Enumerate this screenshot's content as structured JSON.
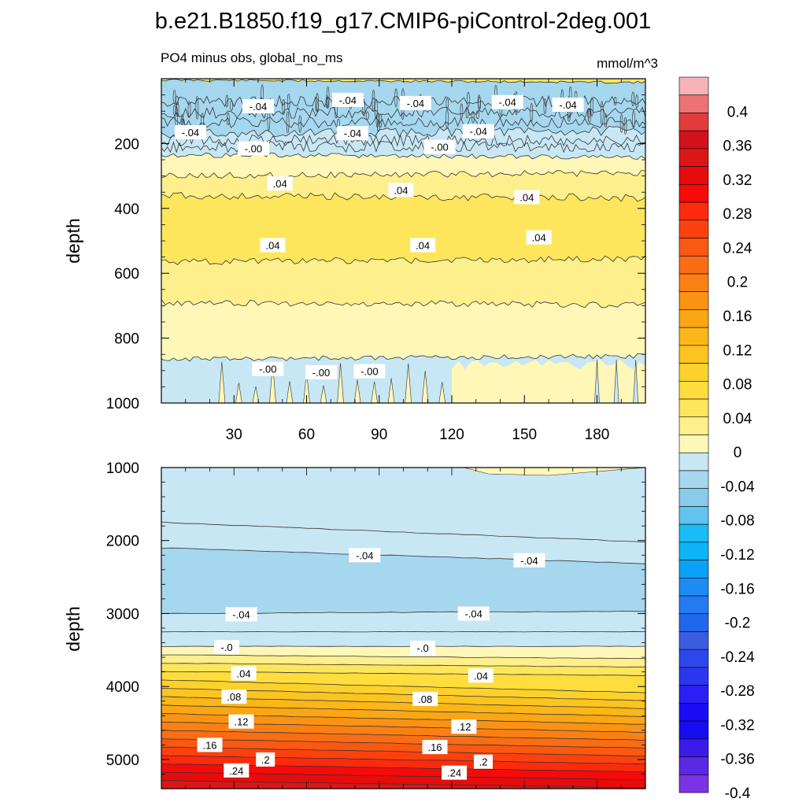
{
  "chart_data": [
    {
      "type": "heatmap",
      "title": "b.e21.B1850.f19_g17.CMIP6-piControl-2deg.001",
      "left_subtitle": "PO4 minus obs, global_no_ms",
      "right_subtitle": "mmol/m^3",
      "xlabel": "",
      "ylabel": "depth",
      "xlim": [
        0,
        200
      ],
      "ylim": [
        0,
        1000
      ],
      "y_inverted": true,
      "x_ticks": [
        "30",
        "60",
        "90",
        "120",
        "150",
        "180"
      ],
      "y_ticks": [
        "200",
        "400",
        "600",
        "800",
        "1000"
      ],
      "contour_labels": [
        {
          "text": "-.04",
          "x": 40,
          "y": 85
        },
        {
          "text": "-.04",
          "x": 77,
          "y": 65
        },
        {
          "text": "-.04",
          "x": 105,
          "y": 75
        },
        {
          "text": "-.04",
          "x": 143,
          "y": 72
        },
        {
          "text": "-.04",
          "x": 168,
          "y": 80
        },
        {
          "text": "-.04",
          "x": 12,
          "y": 165
        },
        {
          "text": "-.04",
          "x": 79,
          "y": 168
        },
        {
          "text": "-.04",
          "x": 131,
          "y": 162
        },
        {
          "text": "-.00",
          "x": 38,
          "y": 215
        },
        {
          "text": "-.00",
          "x": 115,
          "y": 210
        },
        {
          "text": ".04",
          "x": 49,
          "y": 323
        },
        {
          "text": ".04",
          "x": 99,
          "y": 343
        },
        {
          "text": ".04",
          "x": 151,
          "y": 365
        },
        {
          "text": ".04",
          "x": 46,
          "y": 513
        },
        {
          "text": ".04",
          "x": 108,
          "y": 513
        },
        {
          "text": ".04",
          "x": 156,
          "y": 489
        },
        {
          "text": "-.00",
          "x": 44,
          "y": 895
        },
        {
          "text": "-.00",
          "x": 66,
          "y": 905
        },
        {
          "text": "-.00",
          "x": 86,
          "y": 902
        }
      ],
      "bands_top_to_bottom": [
        {
          "from": 0,
          "to": 5,
          "value_range": "0 to 0.04"
        },
        {
          "from": 5,
          "to": 170,
          "value_range": "-0.04 to -0.08"
        },
        {
          "from": 170,
          "to": 265,
          "value_range": "0 to -0.04"
        },
        {
          "from": 265,
          "to": 300,
          "value_range": "0 to 0.04"
        },
        {
          "from": 300,
          "to": 580,
          "value_range": "0.04 to 0.08"
        },
        {
          "from": 580,
          "to": 680,
          "value_range": "0.04"
        },
        {
          "from": 680,
          "to": 860,
          "value_range": "0 to 0.04"
        },
        {
          "from": 860,
          "to": 1000,
          "value_range": "0 to -0.04 (left), 0 to 0.04 (right)"
        }
      ]
    },
    {
      "type": "heatmap",
      "xlabel": "",
      "ylabel": "depth",
      "xlim": [
        0,
        200
      ],
      "ylim": [
        1000,
        5400
      ],
      "y_inverted": true,
      "y_ticks": [
        "1000",
        "2000",
        "3000",
        "4000",
        "5000"
      ],
      "contour_labels": [
        {
          "text": "-.04",
          "x": 84,
          "y": 2200
        },
        {
          "text": "-.04",
          "x": 152,
          "y": 2270
        },
        {
          "text": "-.04",
          "x": 33,
          "y": 3010
        },
        {
          "text": "-.04",
          "x": 129,
          "y": 3000
        },
        {
          "text": "-.0",
          "x": 27,
          "y": 3460
        },
        {
          "text": "-.0",
          "x": 108,
          "y": 3470
        },
        {
          "text": ".04",
          "x": 34,
          "y": 3820
        },
        {
          "text": ".04",
          "x": 132,
          "y": 3850
        },
        {
          "text": ".08",
          "x": 30,
          "y": 4140
        },
        {
          "text": ".08",
          "x": 109,
          "y": 4170
        },
        {
          "text": ".12",
          "x": 33,
          "y": 4480
        },
        {
          "text": ".12",
          "x": 125,
          "y": 4550
        },
        {
          "text": ".16",
          "x": 20,
          "y": 4800
        },
        {
          "text": ".16",
          "x": 113,
          "y": 4830
        },
        {
          "text": ".2",
          "x": 43,
          "y": 5000
        },
        {
          "text": ".2",
          "x": 133,
          "y": 5030
        },
        {
          "text": ".24",
          "x": 31,
          "y": 5150
        },
        {
          "text": ".24",
          "x": 121,
          "y": 5180
        }
      ],
      "bands_top_to_bottom": [
        {
          "from": 1000,
          "to": 1750,
          "value_range": "0 to -0.04"
        },
        {
          "from": 1750,
          "to": 2100,
          "value_range": "0 to -0.04"
        },
        {
          "from": 2100,
          "to": 3000,
          "value_range": "-0.04 to -0.08"
        },
        {
          "from": 3000,
          "to": 3450,
          "value_range": "0 to -0.04"
        },
        {
          "from": 3450,
          "to": 5400,
          "value_range": "0 to 0.26"
        }
      ]
    }
  ],
  "colorbar": {
    "labels": [
      "0.4",
      "0.36",
      "0.32",
      "0.28",
      "0.24",
      "0.2",
      "0.16",
      "0.12",
      "0.08",
      "0.04",
      "0",
      "-0.04",
      "-0.08",
      "-0.12",
      "-0.16",
      "-0.2",
      "-0.24",
      "-0.28",
      "-0.32",
      "-0.36",
      "-0.4"
    ],
    "colors_top_to_bottom": [
      "#f6b3b7",
      "#ee7273",
      "#e23b3c",
      "#d2111a",
      "#dc1616",
      "#e80b0b",
      "#f70a0a",
      "#fe2a0d",
      "#fd410e",
      "#fb5812",
      "#fa6d15",
      "#fb8014",
      "#fa9314",
      "#fba614",
      "#fbb618",
      "#fcc420",
      "#fdd12b",
      "#fedd3c",
      "#fde65b",
      "#fdef8c",
      "#fef7b7",
      "#c8e7f5",
      "#a5d7ee",
      "#8acbea",
      "#61c3ef",
      "#18bdf6",
      "#0eb3f7",
      "#0ba1f6",
      "#1b8cf3",
      "#247af0",
      "#1f68eb",
      "#3a5de0",
      "#2d48ea",
      "#2b36f0",
      "#2a20f6",
      "#1b0cf6",
      "#180cf1",
      "#3b1bea",
      "#5b28e5",
      "#7c33e4"
    ]
  }
}
